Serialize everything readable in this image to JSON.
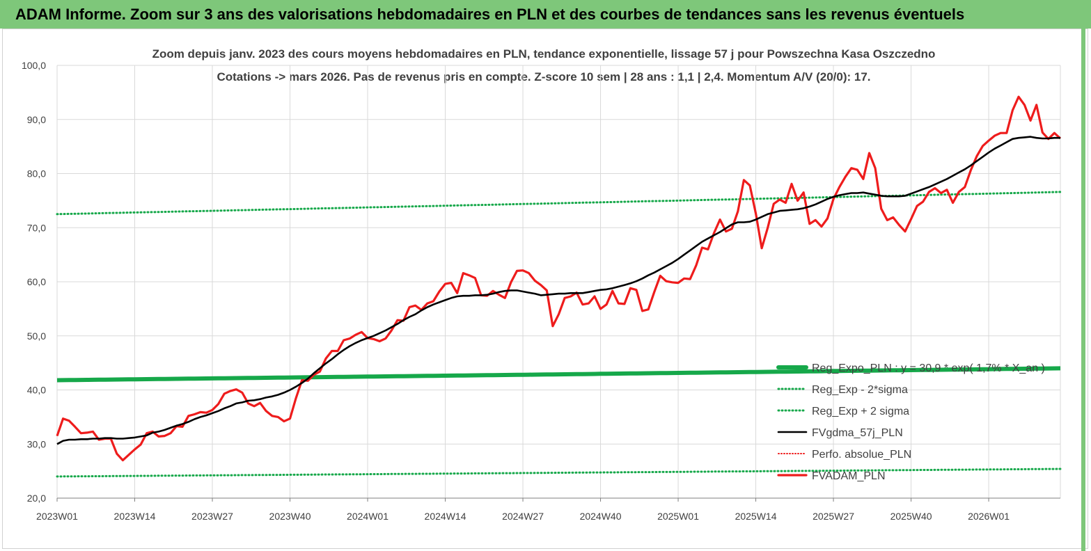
{
  "header": {
    "title": "ADAM Informe. Zoom sur 3 ans des valorisations hebdomadaires en PLN et des courbes de tendances sans les revenus éventuels"
  },
  "colors": {
    "header_bg": "#7ec77a",
    "red": "#ee1c1c",
    "black": "#000000",
    "green": "#16a84a",
    "grid": "#d9d9d9"
  },
  "chart_data": {
    "type": "line",
    "title": "Zoom depuis janv. 2023 des cours moyens hebdomadaires en PLN, tendance exponentielle, lissage 57 j pour Powszechna Kasa Oszczedno",
    "subtitle": "Cotations -> mars 2026. Pas de revenus pris en compte. Z-score 10 sem | 28 ans : 1,1 | 2,4. Momentum A/V (20/0): 17.",
    "xlabel": "",
    "ylabel": "",
    "ylim": [
      20,
      100
    ],
    "yticks": [
      "20,0",
      "30,0",
      "40,0",
      "50,0",
      "60,0",
      "70,0",
      "80,0",
      "90,0",
      "100,0"
    ],
    "xticks": [
      "2023W01",
      "2023W14",
      "2023W27",
      "2023W40",
      "2024W01",
      "2024W14",
      "2024W27",
      "2024W40",
      "2025W01",
      "2025W14",
      "2025W27",
      "2025W40",
      "2026W01"
    ],
    "week_count": 169,
    "grid": true,
    "legend_position": "bottom-right",
    "series": [
      {
        "name": "Reg_Expo_PLN : y = 30,9 * exp( 1,7% * X_an )",
        "style": "thick-solid",
        "color": "#16a84a",
        "start": 41.8,
        "end": 44.0
      },
      {
        "name": "Reg_Exp - 2*sigma",
        "style": "dotted",
        "color": "#16a84a",
        "start": 24.0,
        "end": 25.4
      },
      {
        "name": "Reg_Exp + 2 sigma",
        "style": "dotted",
        "color": "#16a84a",
        "start": 72.5,
        "end": 76.6
      },
      {
        "name": "FVgdma_57j_PLN",
        "style": "solid",
        "color": "#000000",
        "values": [
          30.0,
          30.6,
          30.8,
          30.8,
          30.9,
          30.9,
          31.0,
          31.0,
          31.1,
          31.1,
          31.0,
          31.0,
          31.1,
          31.2,
          31.4,
          31.6,
          32.1,
          32.3,
          32.6,
          33.0,
          33.4,
          33.7,
          34.1,
          34.6,
          35.0,
          35.3,
          35.7,
          36.1,
          36.6,
          37.0,
          37.5,
          37.7,
          38.0,
          38.1,
          38.3,
          38.6,
          38.8,
          39.1,
          39.5,
          40.0,
          40.6,
          41.3,
          42.1,
          43.1,
          44.0,
          44.9,
          45.7,
          46.6,
          47.4,
          48.1,
          48.7,
          49.2,
          49.6,
          50.0,
          50.5,
          51.0,
          51.6,
          52.2,
          52.9,
          53.5,
          54.0,
          54.7,
          55.3,
          55.8,
          56.2,
          56.6,
          57.0,
          57.3,
          57.4,
          57.4,
          57.5,
          57.5,
          57.6,
          57.8,
          58.1,
          58.3,
          58.4,
          58.4,
          58.2,
          58.0,
          57.8,
          57.5,
          57.6,
          57.7,
          57.8,
          57.8,
          57.9,
          57.9,
          57.9,
          58.1,
          58.3,
          58.5,
          58.6,
          58.8,
          59.1,
          59.4,
          59.7,
          60.1,
          60.6,
          61.2,
          61.7,
          62.3,
          62.9,
          63.5,
          64.2,
          65.0,
          65.8,
          66.6,
          67.4,
          68.0,
          68.6,
          69.2,
          69.9,
          70.6,
          71.0,
          71.0,
          71.1,
          71.5,
          72.0,
          72.5,
          72.8,
          73.1,
          73.2,
          73.3,
          73.4,
          73.6,
          73.9,
          74.3,
          74.8,
          75.3,
          75.7,
          76.0,
          76.2,
          76.4,
          76.4,
          76.5,
          76.3,
          76.1,
          75.9,
          75.8,
          75.8,
          75.8,
          75.9,
          76.3,
          76.7,
          77.1,
          77.5,
          78.0,
          78.5,
          79.0,
          79.6,
          80.2,
          80.8,
          81.5,
          82.3,
          83.1,
          83.9,
          84.6,
          85.2,
          85.8,
          86.4,
          86.6,
          86.7,
          86.8,
          86.6,
          86.5,
          86.5,
          86.6,
          86.6
        ]
      },
      {
        "name": "Perfo. absolue_PLN",
        "style": "dotted",
        "color": "#ee1c1c"
      },
      {
        "name": "FVADAM_PLN",
        "style": "solid-thick",
        "color": "#ee1c1c",
        "values": [
          31.5,
          34.7,
          34.3,
          33.2,
          32.0,
          32.1,
          32.3,
          30.8,
          31.0,
          31.0,
          28.2,
          27.0,
          28.0,
          29.0,
          29.9,
          32.0,
          32.3,
          31.4,
          31.5,
          32.0,
          33.3,
          33.2,
          35.2,
          35.5,
          35.9,
          35.8,
          36.3,
          37.4,
          39.3,
          39.8,
          40.1,
          39.5,
          37.5,
          37.0,
          37.6,
          36.1,
          35.2,
          35.0,
          34.2,
          34.7,
          38.5,
          41.8,
          41.7,
          42.8,
          43.4,
          45.8,
          47.2,
          47.2,
          49.2,
          49.5,
          50.2,
          50.7,
          49.6,
          49.4,
          49.0,
          49.5,
          51.0,
          52.9,
          52.8,
          55.3,
          55.6,
          54.8,
          56.0,
          56.4,
          58.2,
          59.6,
          59.8,
          57.9,
          61.6,
          61.2,
          60.7,
          57.5,
          57.4,
          58.3,
          57.6,
          57.0,
          59.9,
          62.0,
          62.1,
          61.6,
          60.2,
          59.4,
          58.4,
          51.8,
          54.0,
          57.0,
          57.3,
          58.0,
          55.8,
          56.0,
          57.3,
          55.0,
          55.8,
          58.3,
          56.0,
          55.9,
          58.8,
          58.5,
          54.6,
          54.9,
          58.1,
          61.1,
          60.1,
          59.9,
          59.8,
          60.6,
          60.5,
          63.0,
          66.3,
          66.0,
          69.0,
          71.5,
          69.3,
          69.8,
          73.0,
          78.8,
          77.8,
          72.6,
          66.2,
          70.0,
          74.4,
          75.2,
          74.6,
          78.1,
          75.0,
          76.5,
          70.7,
          71.4,
          70.2,
          71.7,
          75.3,
          77.5,
          79.4,
          81.0,
          80.7,
          79.0,
          83.8,
          81.0,
          73.5,
          71.4,
          71.9,
          70.5,
          69.3,
          71.6,
          74.0,
          74.8,
          76.6,
          77.3,
          76.4,
          77.0,
          74.6,
          76.6,
          77.5,
          80.6,
          83.2,
          85.1,
          86.1,
          87.0,
          87.5,
          87.5,
          91.7,
          94.2,
          92.7,
          89.8,
          92.7,
          87.6,
          86.4,
          87.5,
          86.5
        ]
      }
    ]
  }
}
